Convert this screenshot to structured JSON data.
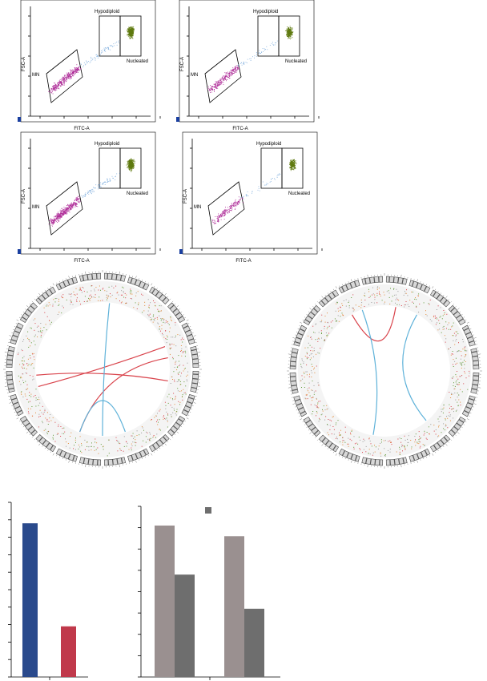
{
  "flow_panels": [
    {
      "id": "p1",
      "gate_labels": {
        "hypodiploid": "Hypodiploid",
        "nucleated": "Nucleated",
        "mn": "MN"
      },
      "xlabel": "FITC-A",
      "ylabel": "FSC-A"
    },
    {
      "id": "p2",
      "gate_labels": {
        "hypodiploid": "Hypodiploid",
        "nucleated": "Nucleated",
        "mn": "MN"
      },
      "xlabel": "FITC-A",
      "ylabel": "FSC-A"
    },
    {
      "id": "p3",
      "gate_labels": {
        "hypodiploid": "Hypodiploid",
        "nucleated": "Nucleated",
        "mn": "MN"
      },
      "xlabel": "FITC-A",
      "ylabel": "FSC-A"
    },
    {
      "id": "p4",
      "gate_labels": {
        "hypodiploid": "Hypodiploid",
        "nucleated": "Nucleated",
        "mn": "MN"
      },
      "xlabel": "FITC-A",
      "ylabel": "FSC-A"
    }
  ],
  "colors": {
    "mn_points": "#b0309a",
    "nucleated_points": "#5f7a10",
    "transition_points": "#6aa0d8",
    "intra_link": "#d9434b",
    "inter_link": "#5fb2d9",
    "bar_blue": "#2a4a8c",
    "bar_red": "#c0394b",
    "bar_gray_light": "#9a9090",
    "bar_gray_dark": "#6e6e6e"
  },
  "circos": [
    {
      "id": "left",
      "links": [
        {
          "type": "intra",
          "from": 200,
          "to": 80
        },
        {
          "type": "intra",
          "from": 265,
          "to": 100
        },
        {
          "type": "intra",
          "from": 255,
          "to": 70
        },
        {
          "type": "inter",
          "from": 6,
          "to": 180
        },
        {
          "type": "inter",
          "from": 160,
          "to": 200
        }
      ]
    },
    {
      "id": "right",
      "links": [
        {
          "type": "intra",
          "from": 330,
          "to": 10
        },
        {
          "type": "inter",
          "from": 340,
          "to": 190
        },
        {
          "type": "inter",
          "from": 30,
          "to": 140
        }
      ]
    }
  ],
  "chart_data": [
    {
      "type": "bar",
      "categories": [
        "",
        ""
      ],
      "values": [
        8.8,
        2.9
      ],
      "ylim": [
        0,
        10
      ]
    },
    {
      "type": "bar",
      "categories": [
        "",
        ""
      ],
      "series": [
        {
          "values": [
            7.1,
            6.6
          ]
        },
        {
          "values": [
            4.8,
            3.2
          ]
        }
      ],
      "ylim": [
        0,
        8
      ],
      "legend": "top-center"
    }
  ]
}
